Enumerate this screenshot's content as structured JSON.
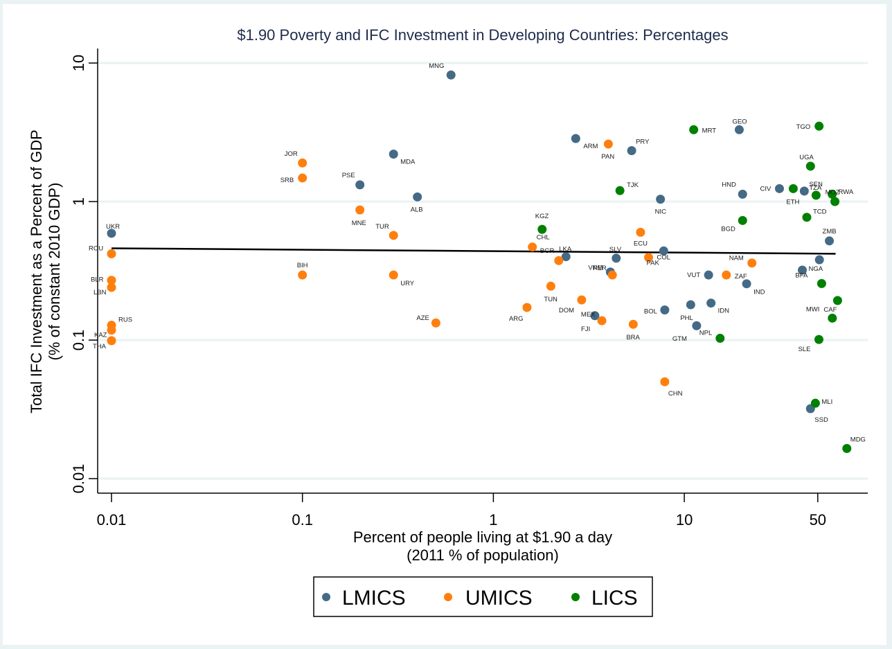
{
  "chart_data": {
    "type": "scatter",
    "title": "$1.90 Poverty and IFC Investment in Developing Countries: Percentages",
    "xlabel": [
      "Percent of people living at $1.90 a day",
      "(2011 % of population)"
    ],
    "ylabel": [
      "Total IFC Investment as a Percent of GDP",
      "(% of constant 2010 GDP)"
    ],
    "xscale": "log",
    "yscale": "log",
    "xlim": [
      0.0085,
      75
    ],
    "ylim": [
      0.0088,
      11
    ],
    "xticks": [
      0.01,
      0.1,
      1,
      10,
      50
    ],
    "xtick_labels": [
      "0.01",
      "0.1",
      "1",
      "10",
      "50"
    ],
    "yticks": [
      10,
      1,
      0.1,
      0.01
    ],
    "ytick_labels": [
      "10",
      "1",
      "0.1",
      "0.01"
    ],
    "grid": "horizontal at y ticks",
    "legend_position": "bottom-center",
    "fit_line": {
      "x": [
        0.01,
        62
      ],
      "y": [
        0.46,
        0.42
      ]
    },
    "series": [
      {
        "name": "LMICS",
        "color": "#456a86",
        "points": [
          {
            "label": "UKR",
            "x": 0.01,
            "y": 0.59
          },
          {
            "label": "MNG",
            "x": 0.6,
            "y": 8.2
          },
          {
            "label": "MDA",
            "x": 0.3,
            "y": 2.2
          },
          {
            "label": "PSE",
            "x": 0.2,
            "y": 1.32
          },
          {
            "label": "ALB",
            "x": 0.4,
            "y": 1.08
          },
          {
            "label": "ARM",
            "x": 2.7,
            "y": 2.85
          },
          {
            "label": "PRY",
            "x": 5.3,
            "y": 2.33
          },
          {
            "label": "NIC",
            "x": 7.5,
            "y": 1.04
          },
          {
            "label": "LKA",
            "x": 2.4,
            "y": 0.4
          },
          {
            "label": "SLV",
            "x": 4.4,
            "y": 0.39
          },
          {
            "label": "VNM",
            "x": 4.1,
            "y": 0.31
          },
          {
            "label": "COL",
            "x": 7.8,
            "y": 0.44
          },
          {
            "label": "MEX",
            "x": 3.4,
            "y": 0.15
          },
          {
            "label": "BOL",
            "x": 7.9,
            "y": 0.165
          },
          {
            "label": "PHL",
            "x": 10.8,
            "y": 0.18
          },
          {
            "label": "IDN",
            "x": 13.8,
            "y": 0.185
          },
          {
            "label": "GTM",
            "x": 11.6,
            "y": 0.127
          },
          {
            "label": "VUT",
            "x": 13.4,
            "y": 0.295
          },
          {
            "label": "IND",
            "x": 21.2,
            "y": 0.255
          },
          {
            "label": "GEO",
            "x": 19.4,
            "y": 3.3
          },
          {
            "label": "HND",
            "x": 20.2,
            "y": 1.13
          },
          {
            "label": "CIV",
            "x": 31.5,
            "y": 1.24
          },
          {
            "label": "SEN",
            "x": 42.5,
            "y": 1.19
          },
          {
            "label": "NGA",
            "x": 41.5,
            "y": 0.32
          },
          {
            "label": "ZMB",
            "x": 57.5,
            "y": 0.52
          },
          {
            "label": "",
            "x": 51,
            "y": 0.38
          },
          {
            "label": "SSD",
            "x": 45.8,
            "y": 0.032
          }
        ]
      },
      {
        "name": "UMICS",
        "color": "#ff7f0e",
        "points": [
          {
            "label": "ROU",
            "x": 0.01,
            "y": 0.42
          },
          {
            "label": "BLR",
            "x": 0.01,
            "y": 0.27
          },
          {
            "label": "LBN",
            "x": 0.01,
            "y": 0.24
          },
          {
            "label": "RUS",
            "x": 0.01,
            "y": 0.128
          },
          {
            "label": "KAZ",
            "x": 0.01,
            "y": 0.118
          },
          {
            "label": "THA",
            "x": 0.01,
            "y": 0.099
          },
          {
            "label": "JOR",
            "x": 0.1,
            "y": 1.9
          },
          {
            "label": "SRB",
            "x": 0.1,
            "y": 1.48
          },
          {
            "label": "MNE",
            "x": 0.2,
            "y": 0.87
          },
          {
            "label": "TUR",
            "x": 0.3,
            "y": 0.57
          },
          {
            "label": "BIH",
            "x": 0.1,
            "y": 0.295
          },
          {
            "label": "URY",
            "x": 0.3,
            "y": 0.295
          },
          {
            "label": "AZE",
            "x": 0.5,
            "y": 0.133
          },
          {
            "label": "CHL",
            "x": 1.6,
            "y": 0.47
          },
          {
            "label": "BGR",
            "x": 2.2,
            "y": 0.375
          },
          {
            "label": "TUN",
            "x": 2.0,
            "y": 0.245
          },
          {
            "label": "ARG",
            "x": 1.5,
            "y": 0.172
          },
          {
            "label": "DOM",
            "x": 2.9,
            "y": 0.195
          },
          {
            "label": "FJI",
            "x": 3.7,
            "y": 0.138
          },
          {
            "label": "PAN",
            "x": 4.0,
            "y": 2.6
          },
          {
            "label": "ECU",
            "x": 5.9,
            "y": 0.6
          },
          {
            "label": "PAK",
            "x": 6.5,
            "y": 0.395
          },
          {
            "label": "PER",
            "x": 4.2,
            "y": 0.295
          },
          {
            "label": "BRA",
            "x": 5.4,
            "y": 0.13
          },
          {
            "label": "CHN",
            "x": 7.9,
            "y": 0.05
          },
          {
            "label": "ZAF",
            "x": 16.6,
            "y": 0.295
          },
          {
            "label": "NAM",
            "x": 22.6,
            "y": 0.36
          }
        ]
      },
      {
        "name": "LICS",
        "color": "#008000",
        "points": [
          {
            "label": "KGZ",
            "x": 1.8,
            "y": 0.63
          },
          {
            "label": "TJK",
            "x": 4.6,
            "y": 1.2
          },
          {
            "label": "MRT",
            "x": 11.2,
            "y": 3.3
          },
          {
            "label": "BGD",
            "x": 20.2,
            "y": 0.73
          },
          {
            "label": "NPL",
            "x": 15.4,
            "y": 0.103
          },
          {
            "label": "TGO",
            "x": 50.8,
            "y": 3.5
          },
          {
            "label": "UGA",
            "x": 45.8,
            "y": 1.8
          },
          {
            "label": "ETH",
            "x": 37.2,
            "y": 1.24
          },
          {
            "label": "TZA",
            "x": 49.0,
            "y": 1.11
          },
          {
            "label": "MOZ",
            "x": 59.5,
            "y": 1.13
          },
          {
            "label": "RWA",
            "x": 61.5,
            "y": 1.0
          },
          {
            "label": "TCD",
            "x": 43.8,
            "y": 0.77
          },
          {
            "label": "BFA",
            "x": 52.4,
            "y": 0.256
          },
          {
            "label": "CAF",
            "x": 63.5,
            "y": 0.193
          },
          {
            "label": "MWI",
            "x": 59.6,
            "y": 0.144
          },
          {
            "label": "SLE",
            "x": 50.7,
            "y": 0.101
          },
          {
            "label": "MLI",
            "x": 48.6,
            "y": 0.035
          },
          {
            "label": "MDG",
            "x": 71.0,
            "y": 0.0165
          }
        ]
      }
    ]
  }
}
